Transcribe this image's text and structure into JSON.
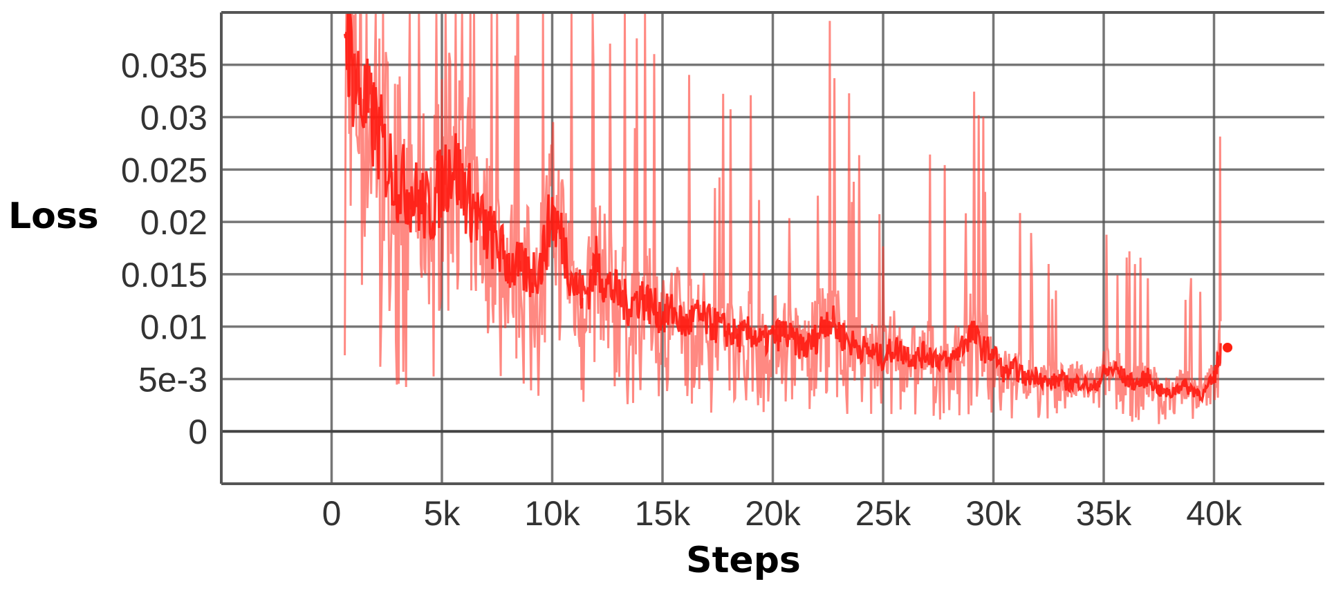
{
  "chart_data": {
    "type": "line",
    "title": "",
    "xlabel": "Steps",
    "ylabel": "Loss",
    "xlim": [
      -5000,
      45000
    ],
    "ylim": [
      -0.005,
      0.04
    ],
    "xticks": [
      0,
      5000,
      10000,
      15000,
      20000,
      25000,
      30000,
      35000,
      40000
    ],
    "xtick_labels": [
      "0",
      "5k",
      "10k",
      "15k",
      "20k",
      "25k",
      "30k",
      "35k",
      "40k"
    ],
    "yticks": [
      0,
      0.005,
      0.01,
      0.015,
      0.02,
      0.025,
      0.03,
      0.035
    ],
    "ytick_labels": [
      "0",
      "5e-3",
      "0.01",
      "0.015",
      "0.02",
      "0.025",
      "0.03",
      "0.035"
    ],
    "grid": true,
    "legend": "none",
    "series_color": "#ff2010",
    "series": [
      {
        "x": [
          600,
          1000,
          1500,
          2000,
          2500,
          3000,
          3500,
          4000,
          4500,
          5000,
          5500,
          6000,
          6500,
          7000,
          7500,
          8000,
          8500,
          9000,
          9500,
          10000,
          10500,
          11000,
          11500,
          12000,
          12500,
          13000,
          13500,
          14000,
          14500,
          15000,
          15500,
          16000,
          16500,
          17000,
          17500,
          18000,
          18500,
          19000,
          19500,
          20000,
          20500,
          21000,
          21500,
          22000,
          22500,
          23000,
          23500,
          24000,
          24500,
          25000,
          25500,
          26000,
          26500,
          27000,
          27500,
          28000,
          28500,
          29000,
          29500,
          30000,
          30500,
          31000,
          31500,
          32000,
          32500,
          33000,
          33500,
          34000,
          34500,
          35000,
          35500,
          36000,
          36500,
          37000,
          37500,
          38000,
          38500,
          39000,
          39500,
          40000,
          40300
        ],
        "y": [
          0.04,
          0.034,
          0.031,
          0.029,
          0.026,
          0.024,
          0.023,
          0.022,
          0.021,
          0.024,
          0.026,
          0.023,
          0.021,
          0.019,
          0.018,
          0.016,
          0.0155,
          0.015,
          0.016,
          0.021,
          0.018,
          0.014,
          0.013,
          0.016,
          0.014,
          0.013,
          0.012,
          0.013,
          0.012,
          0.011,
          0.0115,
          0.01,
          0.011,
          0.0105,
          0.01,
          0.0095,
          0.009,
          0.0095,
          0.0085,
          0.009,
          0.0095,
          0.0085,
          0.008,
          0.009,
          0.011,
          0.0095,
          0.0085,
          0.008,
          0.0075,
          0.007,
          0.008,
          0.0075,
          0.007,
          0.0075,
          0.007,
          0.0065,
          0.008,
          0.0095,
          0.008,
          0.0075,
          0.0055,
          0.006,
          0.005,
          0.0055,
          0.0045,
          0.005,
          0.0045,
          0.0048,
          0.004,
          0.0055,
          0.006,
          0.005,
          0.0045,
          0.0052,
          0.004,
          0.0035,
          0.0045,
          0.004,
          0.0035,
          0.005,
          0.008
        ]
      }
    ]
  }
}
